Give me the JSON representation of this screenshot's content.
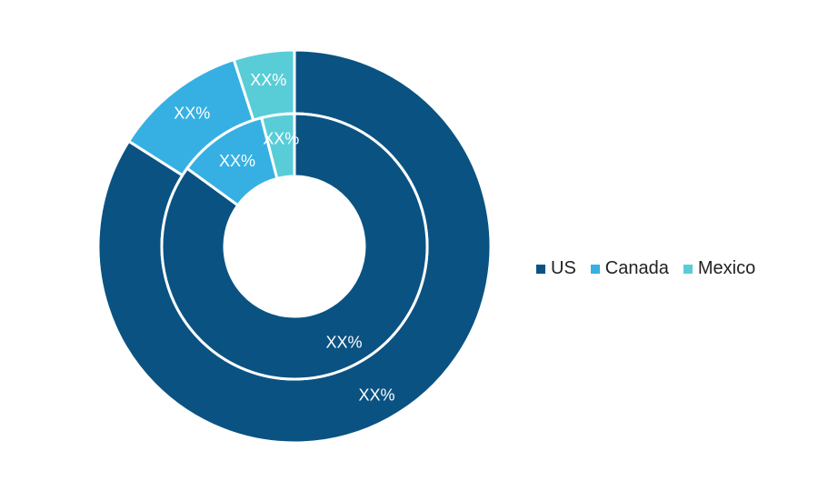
{
  "chart_data": {
    "type": "pie",
    "subtype": "nested-donut",
    "categories": [
      "US",
      "Canada",
      "Mexico"
    ],
    "colors": [
      "#0a5282",
      "#36b0e3",
      "#58cdd8"
    ],
    "series": [
      {
        "values": [
          0.84,
          0.11,
          0.05
        ],
        "labels": [
          "XX%",
          "XX%",
          "XX%"
        ]
      },
      {
        "values": [
          0.85,
          0.11,
          0.04
        ],
        "labels": [
          "XX%",
          "XX%",
          "XX%"
        ]
      }
    ],
    "legend_position": "right",
    "legend": [
      "US",
      "Canada",
      "Mexico"
    ]
  }
}
